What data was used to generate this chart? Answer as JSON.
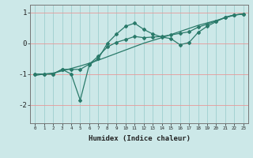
{
  "xlabel": "Humidex (Indice chaleur)",
  "background_color": "#cce8e8",
  "line_color": "#2a7a6a",
  "x_values": [
    0,
    1,
    2,
    3,
    4,
    5,
    6,
    7,
    8,
    9,
    10,
    11,
    12,
    13,
    14,
    15,
    16,
    17,
    18,
    19,
    20,
    21,
    22,
    23
  ],
  "line1": [
    -1.0,
    -1.0,
    -1.0,
    -0.85,
    -1.0,
    -1.85,
    -0.7,
    -0.5,
    0.0,
    0.3,
    0.55,
    0.65,
    0.45,
    0.3,
    0.2,
    0.15,
    -0.05,
    0.02,
    0.35,
    0.55,
    0.7,
    0.85,
    0.92,
    0.95
  ],
  "line2": [
    -1.0,
    -1.0,
    -1.0,
    -0.85,
    -0.85,
    -0.85,
    -0.68,
    -0.42,
    -0.12,
    0.03,
    0.12,
    0.22,
    0.18,
    0.2,
    0.22,
    0.27,
    0.32,
    0.37,
    0.52,
    0.62,
    0.72,
    0.83,
    0.92,
    0.95
  ],
  "line3": [
    -1.05,
    -1.0,
    -0.97,
    -0.9,
    -0.82,
    -0.74,
    -0.65,
    -0.55,
    -0.44,
    -0.33,
    -0.22,
    -0.11,
    0.0,
    0.09,
    0.18,
    0.28,
    0.38,
    0.48,
    0.58,
    0.66,
    0.74,
    0.83,
    0.91,
    0.95
  ],
  "ylim": [
    -2.6,
    1.25
  ],
  "xlim": [
    -0.5,
    23.5
  ],
  "yticks": [
    -2,
    -1,
    0,
    1
  ],
  "xticks": [
    0,
    1,
    2,
    3,
    4,
    5,
    6,
    7,
    8,
    9,
    10,
    11,
    12,
    13,
    14,
    15,
    16,
    17,
    18,
    19,
    20,
    21,
    22,
    23
  ]
}
